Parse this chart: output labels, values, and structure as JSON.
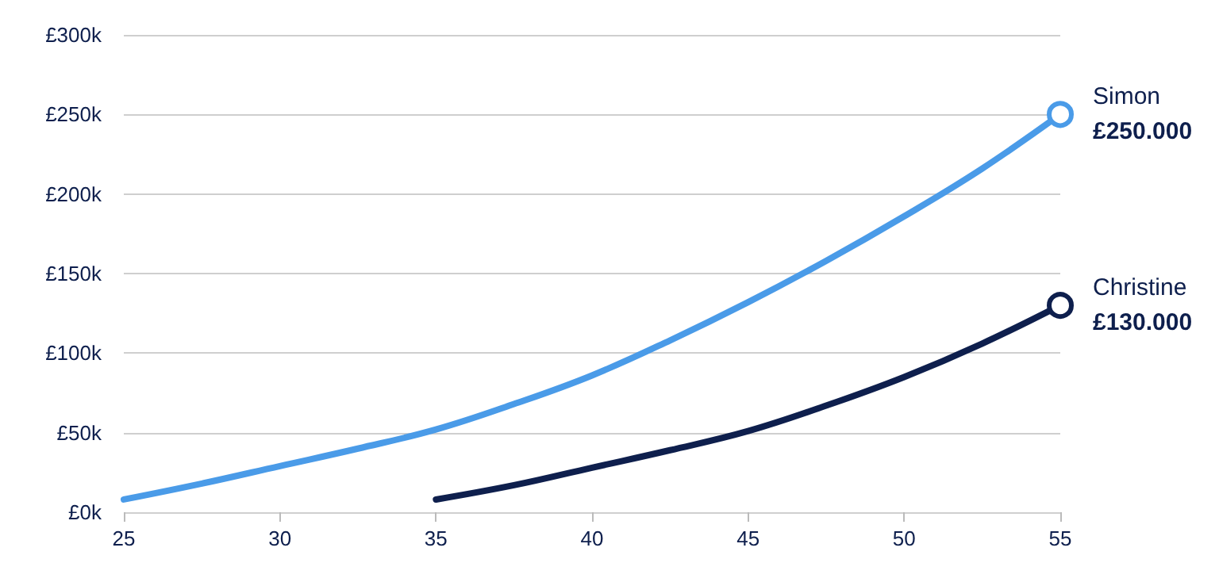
{
  "chart_data": {
    "type": "line",
    "x": [
      25,
      27.5,
      30,
      32.5,
      35,
      37.5,
      40,
      42.5,
      45,
      47.5,
      50,
      52.5,
      55
    ],
    "series": [
      {
        "name": "Simon",
        "color": "#4a9be8",
        "values": [
          8000,
          18000,
          29000,
          40000,
          52000,
          68000,
          86000,
          108000,
          132000,
          158000,
          186000,
          216000,
          250000
        ],
        "value_labels": [
          null,
          null,
          null,
          null,
          null,
          null,
          null,
          null,
          null,
          null,
          null,
          null,
          "£250.000"
        ]
      },
      {
        "name": "Christine",
        "color": "#0e1f4d",
        "x": [
          35,
          37.5,
          40,
          42.5,
          45,
          47.5,
          50,
          52.5,
          55
        ],
        "values": [
          8000,
          17000,
          28000,
          39000,
          51000,
          67000,
          85000,
          106000,
          130000
        ],
        "value_labels": [
          null,
          null,
          null,
          null,
          null,
          null,
          null,
          null,
          "£130.000"
        ]
      }
    ],
    "xlim": [
      25,
      55
    ],
    "xticks": [
      25,
      30,
      35,
      40,
      45,
      50,
      55
    ],
    "ylim": [
      0,
      300000
    ],
    "yticks": [
      {
        "value": 0,
        "label": "£0k"
      },
      {
        "value": 50000,
        "label": "£50k"
      },
      {
        "value": 100000,
        "label": "£100k"
      },
      {
        "value": 150000,
        "label": "£150k"
      },
      {
        "value": 200000,
        "label": "£200k"
      },
      {
        "value": 250000,
        "label": "£250k"
      },
      {
        "value": 300000,
        "label": "£300k"
      }
    ],
    "grid": "y",
    "legend": false,
    "line_style": "solid"
  }
}
